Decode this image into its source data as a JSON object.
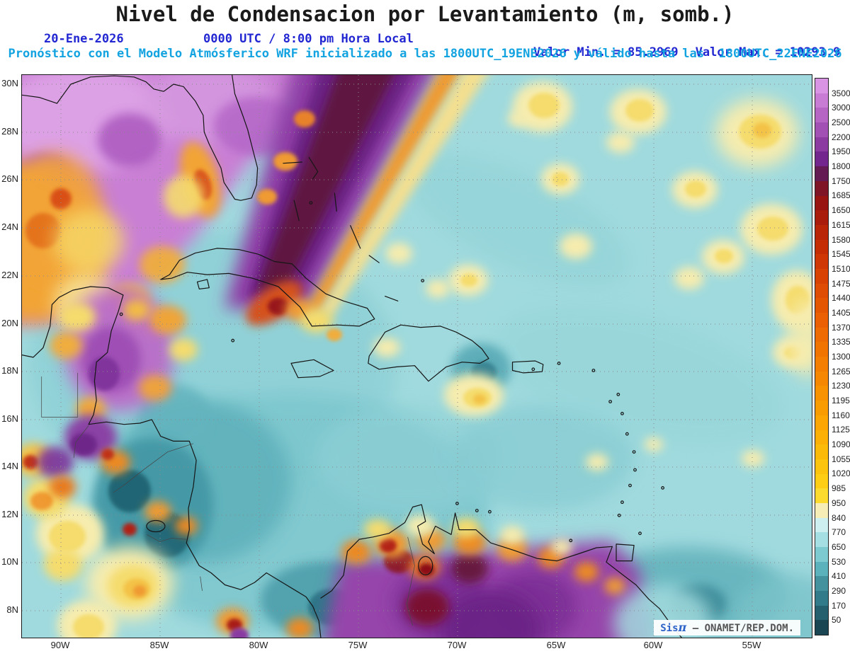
{
  "title": "Nivel de Condensacion por Levantamiento (m, somb.)",
  "header": {
    "date": "20-Ene-2026",
    "time": "0000 UTC / 8:00 pm Hora Local",
    "valor_min": "Valor Min. = 85.2969",
    "valor_max": "Valor Max. = 10293.9",
    "model": "Pronóstico con el Modelo Atmósferico WRF inicializado a las 1800UTC_19ENE2026 y válido hasta las  1800UTC_22ENE2026"
  },
  "axes": {
    "lat": [
      "30N",
      "28N",
      "26N",
      "24N",
      "22N",
      "20N",
      "18N",
      "16N",
      "14N",
      "12N",
      "10N",
      "8N"
    ],
    "lon": [
      "90W",
      "85W",
      "80W",
      "75W",
      "70W",
      "65W",
      "60W",
      "55W"
    ]
  },
  "colorbar": {
    "labels": [
      "3500",
      "3000",
      "2500",
      "2200",
      "1950",
      "1800",
      "1750",
      "1685",
      "1650",
      "1615",
      "1580",
      "1545",
      "1510",
      "1475",
      "1440",
      "1405",
      "1370",
      "1335",
      "1300",
      "1265",
      "1230",
      "1195",
      "1160",
      "1125",
      "1090",
      "1055",
      "1020",
      "985",
      "950",
      "840",
      "770",
      "650",
      "530",
      "410",
      "290",
      "170",
      "50"
    ],
    "colors": [
      "#d994e3",
      "#c97cd4",
      "#b765c5",
      "#a350b4",
      "#8c3ba1",
      "#73268d",
      "#641a52",
      "#7e1426",
      "#971413",
      "#a91c0b",
      "#b92507",
      "#c52e05",
      "#cf3804",
      "#d84203",
      "#df4c03",
      "#e55602",
      "#ea6002",
      "#ee6a02",
      "#f17401",
      "#f47e01",
      "#f68801",
      "#f89201",
      "#f99c02",
      "#fba603",
      "#fcb005",
      "#fcba08",
      "#fdc40d",
      "#fdce14",
      "#fdda2e",
      "#f5edb5",
      "#cdeff0",
      "#a5dfe3",
      "#7ecad1",
      "#5cb2bc",
      "#45929f",
      "#327b8b",
      "#25606f",
      "#1a4654"
    ]
  },
  "watermark": {
    "sis": "Sis",
    "pi": "π",
    "sep": "—",
    "org": "ONAMET/REP.DOM."
  },
  "chart_data": {
    "type": "heatmap",
    "title": "Nivel de Condensacion por Levantamiento (m, somb.)",
    "units": "m",
    "value_min": 85.2969,
    "value_max": 10293.9,
    "contour_levels": [
      50,
      170,
      290,
      410,
      530,
      650,
      770,
      840,
      950,
      985,
      1020,
      1055,
      1090,
      1125,
      1160,
      1195,
      1230,
      1265,
      1300,
      1335,
      1370,
      1405,
      1440,
      1475,
      1510,
      1545,
      1580,
      1615,
      1650,
      1685,
      1750,
      1800,
      1950,
      2200,
      2500,
      3000,
      3500
    ],
    "lat_ticks": [
      "30N",
      "28N",
      "26N",
      "24N",
      "22N",
      "20N",
      "18N",
      "16N",
      "14N",
      "12N",
      "10N",
      "8N"
    ],
    "lon_ticks": [
      "90W",
      "85W",
      "80W",
      "75W",
      "70W",
      "65W",
      "60W",
      "55W"
    ],
    "legend_position": "right",
    "grid": true
  }
}
